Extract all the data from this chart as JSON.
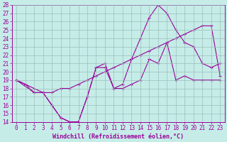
{
  "xlabel": "Windchill (Refroidissement éolien,°C)",
  "xlim": [
    -0.5,
    23.5
  ],
  "ylim": [
    14,
    28
  ],
  "xticks": [
    0,
    1,
    2,
    3,
    4,
    5,
    6,
    7,
    8,
    9,
    10,
    11,
    12,
    13,
    14,
    15,
    16,
    17,
    18,
    19,
    20,
    21,
    22,
    23
  ],
  "yticks": [
    14,
    15,
    16,
    17,
    18,
    19,
    20,
    21,
    22,
    23,
    24,
    25,
    26,
    27,
    28
  ],
  "bg_color": "#c6ece8",
  "line_color": "#990099",
  "grid_color": "#9bbfbb",
  "line1_x": [
    0,
    1,
    2,
    3,
    4,
    5,
    6,
    7,
    8,
    9,
    10,
    11,
    12,
    13,
    14,
    15,
    16,
    17,
    18,
    19,
    20,
    21,
    22,
    23
  ],
  "line1_y": [
    19,
    18.5,
    17.5,
    17.5,
    16,
    14.5,
    14,
    14,
    17,
    20.5,
    20.5,
    18,
    18,
    18.5,
    19,
    21.5,
    21,
    23.5,
    19,
    19.5,
    19,
    19,
    19,
    19
  ],
  "line2_x": [
    0,
    1,
    2,
    3,
    4,
    5,
    6,
    7,
    8,
    9,
    10,
    11,
    12,
    13,
    14,
    15,
    16,
    17,
    18,
    19,
    20,
    21,
    22,
    23
  ],
  "line2_y": [
    19,
    18.5,
    18,
    17.5,
    17.5,
    18,
    18,
    18.5,
    19,
    19.5,
    20,
    20.5,
    21,
    21.5,
    22,
    22.5,
    23,
    23.5,
    24,
    24.5,
    25,
    25.5,
    25.5,
    19.5
  ],
  "line3_x": [
    0,
    2,
    3,
    4,
    5,
    6,
    7,
    8,
    9,
    10,
    11,
    12,
    13,
    14,
    15,
    16,
    17,
    18,
    19,
    20,
    21,
    22,
    23
  ],
  "line3_y": [
    19,
    17.5,
    17.5,
    16,
    14.5,
    14,
    14,
    17,
    20.5,
    21,
    18,
    18.5,
    21.5,
    24,
    26.5,
    28,
    27,
    25,
    23.5,
    23,
    21,
    20.5,
    21
  ],
  "tick_fontsize": 5.5,
  "xlabel_fontsize": 6,
  "marker_size": 3
}
